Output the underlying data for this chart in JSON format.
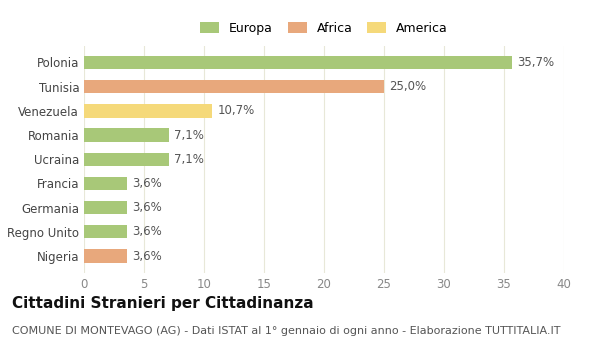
{
  "categories": [
    "Nigeria",
    "Regno Unito",
    "Germania",
    "Francia",
    "Ucraina",
    "Romania",
    "Venezuela",
    "Tunisia",
    "Polonia"
  ],
  "values": [
    3.6,
    3.6,
    3.6,
    3.6,
    7.1,
    7.1,
    10.7,
    25.0,
    35.7
  ],
  "labels": [
    "3,6%",
    "3,6%",
    "3,6%",
    "3,6%",
    "7,1%",
    "7,1%",
    "10,7%",
    "25,0%",
    "35,7%"
  ],
  "colors": [
    "#e8a87c",
    "#a8c878",
    "#a8c878",
    "#a8c878",
    "#a8c878",
    "#a8c878",
    "#f5d97a",
    "#e8a87c",
    "#a8c878"
  ],
  "legend": [
    {
      "label": "Europa",
      "color": "#a8c878"
    },
    {
      "label": "Africa",
      "color": "#e8a87c"
    },
    {
      "label": "America",
      "color": "#f5d97a"
    }
  ],
  "xlim": [
    0,
    40
  ],
  "xticks": [
    0,
    5,
    10,
    15,
    20,
    25,
    30,
    35,
    40
  ],
  "title": "Cittadini Stranieri per Cittadinanza",
  "subtitle": "COMUNE DI MONTEVAGO (AG) - Dati ISTAT al 1° gennaio di ogni anno - Elaborazione TUTTITALIA.IT",
  "background_color": "#ffffff",
  "grid_color": "#e8e8d8",
  "bar_height": 0.55,
  "label_fontsize": 8.5,
  "title_fontsize": 11,
  "subtitle_fontsize": 8,
  "ytick_fontsize": 8.5,
  "xtick_fontsize": 8.5
}
